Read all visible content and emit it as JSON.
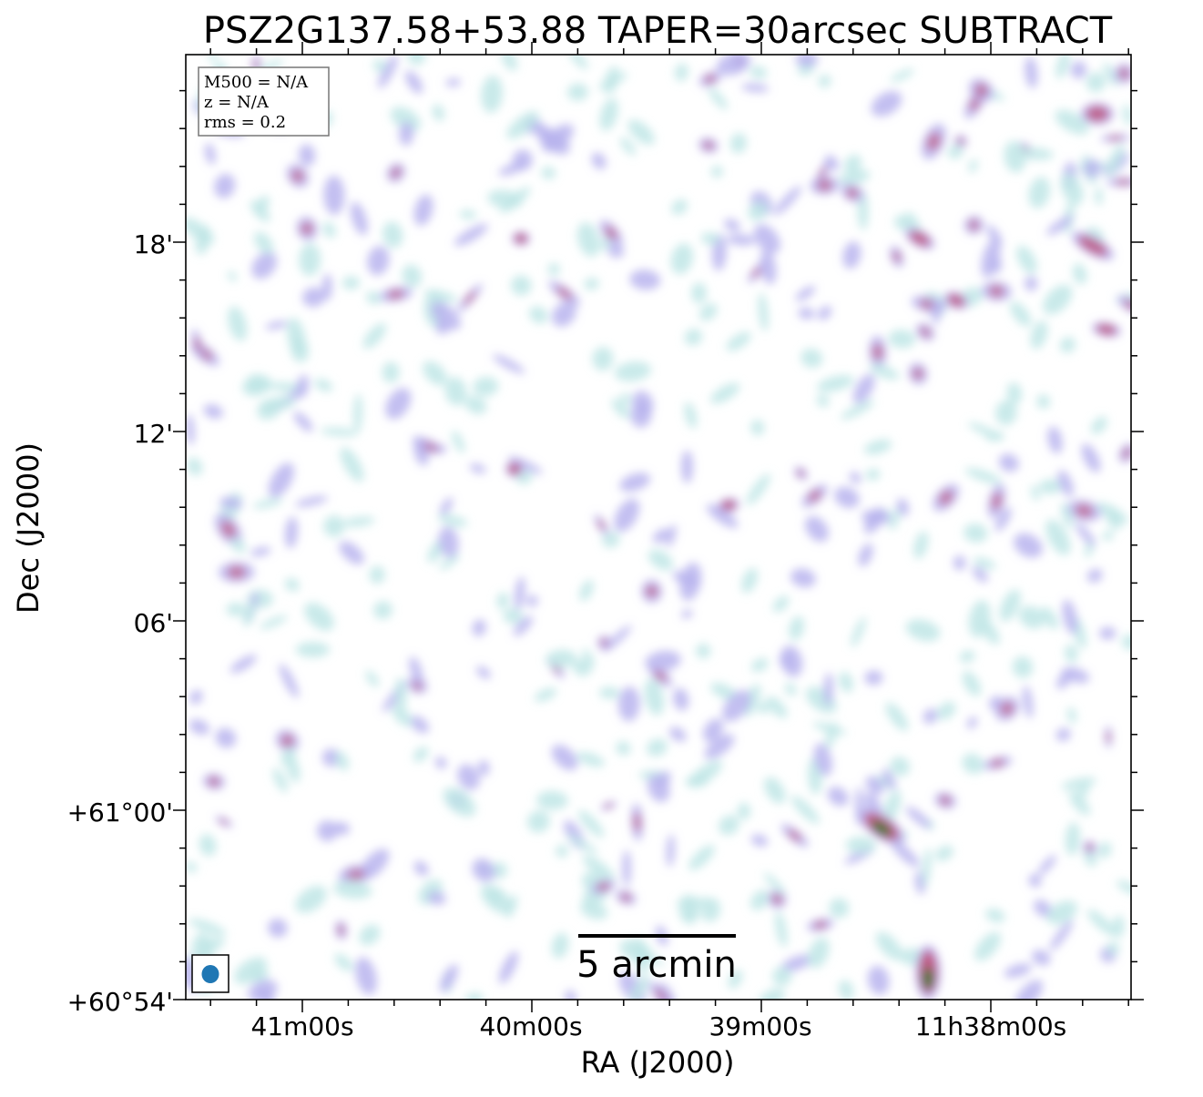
{
  "chart_data": {
    "type": "heatmap",
    "title": "PSZ2G137.58+53.88 TAPER=30arcsec SUBTRACT",
    "xlabel": "RA (J2000)",
    "ylabel": "Dec (J2000)",
    "x_ticks": [
      "41m00s",
      "40m00s",
      "39m00s",
      "11h38m00s"
    ],
    "y_ticks": [
      "+60°54'",
      "+61°00'",
      "06'",
      "12'",
      "18'"
    ],
    "info_box": [
      "M500 = N/A",
      "z = N/A",
      "rms = 0.2"
    ],
    "scalebar_label": "5 arcmin",
    "scalebar_arcmin": 5,
    "colors": {
      "low": "#bfe6e6",
      "mid": "#b9b4ee",
      "high": "#c0567e",
      "peak": "#3a7a2e",
      "beam": "#1f77b4"
    },
    "sources": [
      {
        "ra": "11h38m22s",
        "dec": "+61°00'16\"",
        "peak": "high",
        "shape": "elongated"
      },
      {
        "ra": "11h38m05s",
        "dec": "+60°54'48\"",
        "peak": "high",
        "shape": "compact"
      }
    ],
    "grid": false
  }
}
